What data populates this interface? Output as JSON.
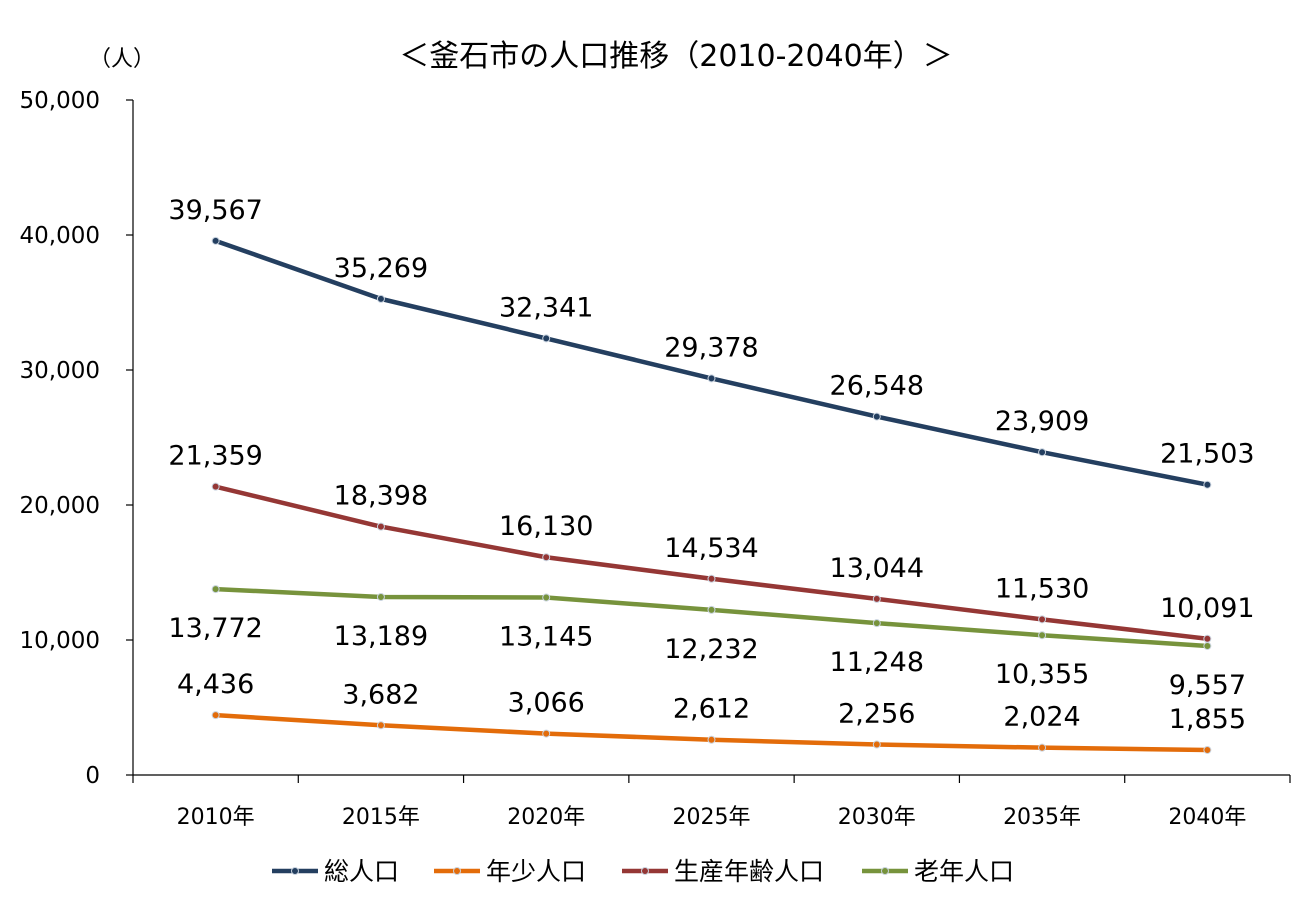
{
  "chart_data": {
    "type": "line",
    "title": "＜釜石市の人口推移（2010-2040年）＞",
    "ylabel": "（人）",
    "xlabel": "",
    "categories": [
      "2010年",
      "2015年",
      "2020年",
      "2025年",
      "2030年",
      "2035年",
      "2040年"
    ],
    "ylim": [
      0,
      50000
    ],
    "yticks": [
      0,
      10000,
      20000,
      30000,
      40000,
      50000
    ],
    "ytick_labels": [
      "0",
      "10,000",
      "20,000",
      "30,000",
      "40,000",
      "50,000"
    ],
    "grid": false,
    "legend_position": "bottom",
    "series": [
      {
        "name": "総人口",
        "color": "#243F60",
        "values": [
          39567,
          35269,
          32341,
          29378,
          26548,
          23909,
          21503
        ],
        "labels": [
          "39,567",
          "35,269",
          "32,341",
          "29,378",
          "26,548",
          "23,909",
          "21,503"
        ],
        "label_position": "above"
      },
      {
        "name": "年少人口",
        "color": "#E36C0A",
        "values": [
          4436,
          3682,
          3066,
          2612,
          2256,
          2024,
          1855
        ],
        "labels": [
          "4,436",
          "3,682",
          "3,066",
          "2,612",
          "2,256",
          "2,024",
          "1,855"
        ],
        "label_position": "above"
      },
      {
        "name": "生産年齢人口",
        "color": "#953735",
        "values": [
          21359,
          18398,
          16130,
          14534,
          13044,
          11530,
          10091
        ],
        "labels": [
          "21,359",
          "18,398",
          "16,130",
          "14,534",
          "13,044",
          "11,530",
          "10,091"
        ],
        "label_position": "above"
      },
      {
        "name": "老年人口",
        "color": "#77933C",
        "values": [
          13772,
          13189,
          13145,
          12232,
          11248,
          10355,
          9557
        ],
        "labels": [
          "13,772",
          "13,189",
          "13,145",
          "12,232",
          "11,248",
          "10,355",
          "9,557"
        ],
        "label_position": "below"
      }
    ]
  }
}
